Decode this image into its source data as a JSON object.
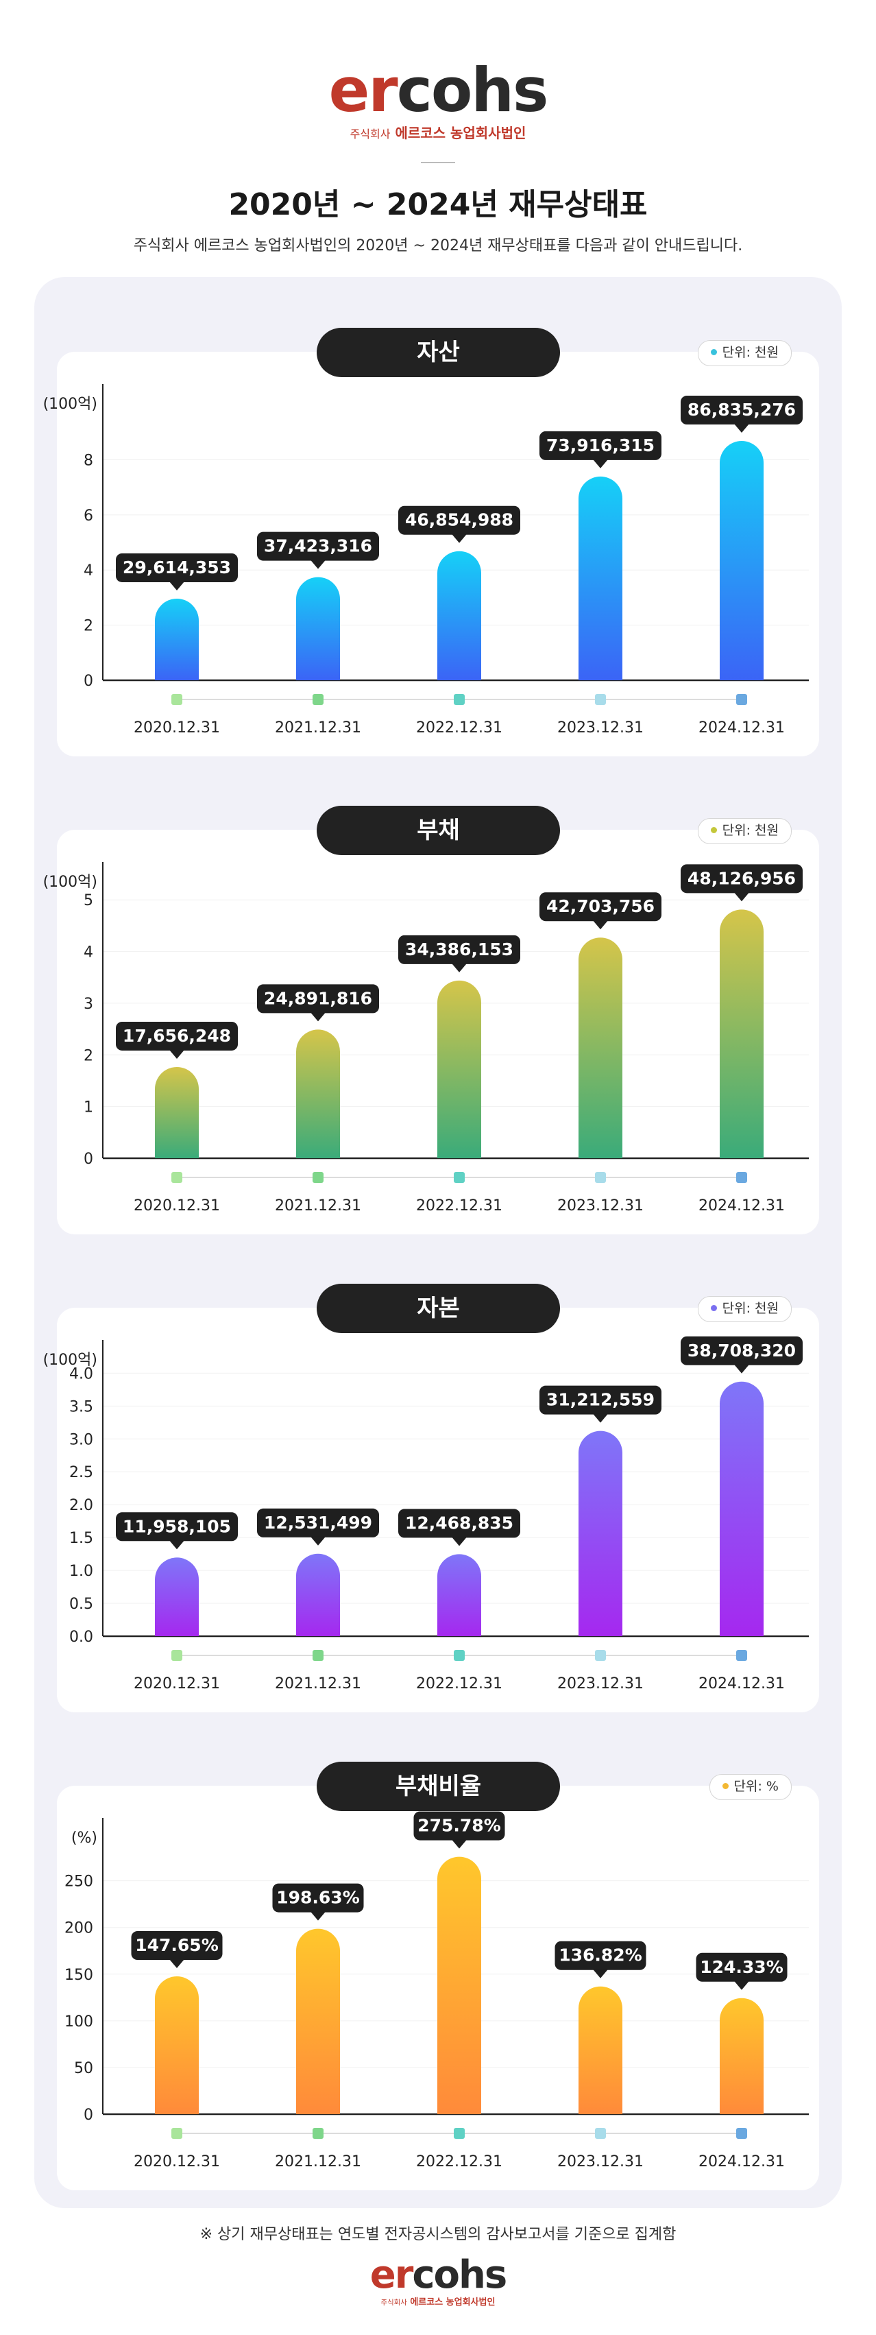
{
  "header": {
    "logo_text_er": "er",
    "logo_text_cohs": "cohs",
    "logo_sub_small": "주식회사",
    "logo_sub_main": "에르코스 농업회사법인",
    "title": "2020년 ~ 2024년 재무상태표",
    "subtitle": "주식회사 에르코스 농업회사법인의 2020년 ~ 2024년 재무상태표를 다음과 같이 안내드립니다."
  },
  "footer": {
    "note": "※ 상기 재무상태표는 연도별 전자공시스템의 감사보고서를 기준으로 집계함"
  },
  "colors": {
    "logo_red": "#c0392b",
    "pill_bg": "#222222",
    "panel_bg": "#f1f1f8",
    "marker_colors": [
      "#a9e59b",
      "#7ed68a",
      "#5fd1c4",
      "#a8dcea",
      "#6aa8e0"
    ]
  },
  "chart_data": [
    {
      "type": "bar",
      "title": "자산",
      "unit_badge": "단위: 천원",
      "unit_dot_color": "#38c2dd",
      "ylabel": "(100억)",
      "ylim": [
        0,
        10.5
      ],
      "yticks": [
        0,
        2,
        4,
        6,
        8
      ],
      "ytick_labels": [
        "0",
        "2",
        "4",
        "6",
        "8"
      ],
      "categories": [
        "2020.12.31",
        "2021.12.31",
        "2022.12.31",
        "2023.12.31",
        "2024.12.31"
      ],
      "values": [
        2.9614353,
        3.7423316,
        4.6854988,
        7.3916315,
        8.6835276
      ],
      "data_labels": [
        "29,614,353",
        "37,423,316",
        "46,854,988",
        "73,916,315",
        "86,835,276"
      ],
      "gradient": [
        "#16d0f7",
        "#3b64f6"
      ]
    },
    {
      "type": "bar",
      "title": "부채",
      "unit_badge": "단위: 천원",
      "unit_dot_color": "#c4c73a",
      "ylabel": "(100억)",
      "ylim": [
        0,
        5.6
      ],
      "yticks": [
        0,
        1,
        2,
        3,
        4,
        5
      ],
      "ytick_labels": [
        "0",
        "1",
        "2",
        "3",
        "4",
        "5"
      ],
      "categories": [
        "2020.12.31",
        "2021.12.31",
        "2022.12.31",
        "2023.12.31",
        "2024.12.31"
      ],
      "values": [
        1.7656248,
        2.4891816,
        3.4386153,
        4.2703756,
        4.8126956
      ],
      "data_labels": [
        "17,656,248",
        "24,891,816",
        "34,386,153",
        "42,703,756",
        "48,126,956"
      ],
      "gradient": [
        "#d5c54a",
        "#3aab7a"
      ]
    },
    {
      "type": "bar",
      "title": "자본",
      "unit_badge": "단위: 천원",
      "unit_dot_color": "#7a6ff0",
      "ylabel": "(100억)",
      "ylim": [
        0,
        4.4
      ],
      "yticks": [
        0,
        0.5,
        1,
        1.5,
        2,
        2.5,
        3,
        3.5,
        4
      ],
      "ytick_labels": [
        "0.0",
        "0.5",
        "1.0",
        "1.5",
        "2.0",
        "2.5",
        "3.0",
        "3.5",
        "4.0"
      ],
      "categories": [
        "2020.12.31",
        "2021.12.31",
        "2022.12.31",
        "2023.12.31",
        "2024.12.31"
      ],
      "values": [
        1.1958105,
        1.2531499,
        1.2468835,
        3.1212559,
        3.870832
      ],
      "data_labels": [
        "11,958,105",
        "12,531,499",
        "12,468,835",
        "31,212,559",
        "38,708,320"
      ],
      "gradient": [
        "#7f76f8",
        "#a528ef"
      ]
    },
    {
      "type": "bar",
      "title": "부채비율",
      "unit_badge": "단위: %",
      "unit_dot_color": "#f3b833",
      "ylabel": "(%)",
      "ylim": [
        0,
        310
      ],
      "yticks": [
        0,
        50,
        100,
        150,
        200,
        250
      ],
      "ytick_labels": [
        "0",
        "50",
        "100",
        "150",
        "200",
        "250"
      ],
      "categories": [
        "2020.12.31",
        "2021.12.31",
        "2022.12.31",
        "2023.12.31",
        "2024.12.31"
      ],
      "values": [
        147.65,
        198.63,
        275.78,
        136.82,
        124.33
      ],
      "data_labels": [
        "147.65%",
        "198.63%",
        "275.78%",
        "136.82%",
        "124.33%"
      ],
      "gradient": [
        "#ffc72c",
        "#ff8a3a"
      ]
    }
  ]
}
